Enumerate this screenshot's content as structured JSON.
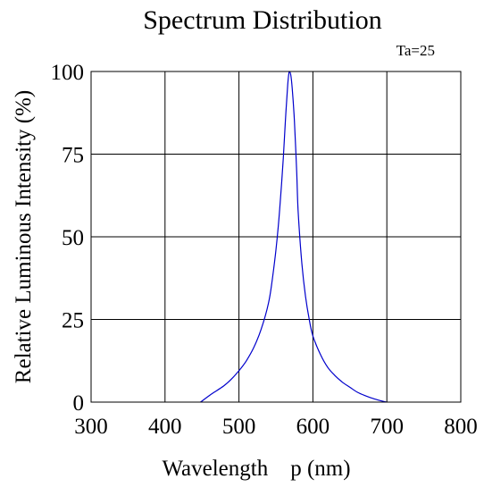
{
  "chart_data": {
    "type": "line",
    "title": "Spectrum Distribution",
    "annotation": "Ta=25",
    "xlabel": "Wavelength    p (nm)",
    "ylabel": "Relative Luminous Intensity (%)",
    "xlim": [
      300,
      800
    ],
    "ylim": [
      0,
      100
    ],
    "xticks": [
      300,
      400,
      500,
      600,
      700,
      800
    ],
    "yticks": [
      0,
      25,
      50,
      75,
      100
    ],
    "grid": true,
    "line_color": "#0000cc",
    "series": [
      {
        "x": [
          448,
          460,
          470,
          480,
          490,
          500,
          510,
          520,
          530,
          540,
          545,
          550,
          555,
          560,
          563,
          566,
          568,
          570,
          572,
          575,
          578,
          580,
          585,
          590,
          595,
          600,
          610,
          620,
          630,
          640,
          650,
          660,
          670,
          680,
          690,
          700
        ],
        "y": [
          0,
          2,
          3.5,
          5,
          7,
          9.5,
          12.5,
          16.5,
          22,
          30,
          37,
          46,
          58,
          74,
          86,
          96,
          100,
          99,
          95,
          85,
          70,
          58,
          42,
          32,
          25,
          20,
          14.5,
          10.5,
          8,
          6,
          4.5,
          3,
          2,
          1.2,
          0.5,
          0
        ]
      }
    ]
  }
}
